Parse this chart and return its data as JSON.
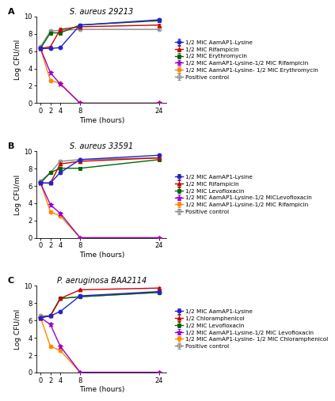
{
  "panels": [
    {
      "label": "A",
      "title": "S. aureus 29213",
      "time": [
        0,
        2,
        4,
        8,
        24
      ],
      "series": [
        {
          "label": "1/2 MIC AamAP1-Lysine",
          "color": "#2222cc",
          "marker": "o",
          "filled": true,
          "values": [
            6.3,
            6.3,
            6.4,
            9.0,
            9.6
          ],
          "yerr": [
            0.1,
            0.1,
            0.1,
            0.15,
            0.15
          ]
        },
        {
          "label": "1/2 MIC Rifampicin",
          "color": "#cc0000",
          "marker": "^",
          "filled": true,
          "values": [
            6.3,
            6.5,
            8.5,
            8.8,
            9.0
          ],
          "yerr": [
            0.1,
            0.1,
            0.15,
            0.15,
            0.15
          ]
        },
        {
          "label": "1/2 MIC Erythromycin",
          "color": "#006600",
          "marker": "s",
          "filled": true,
          "values": [
            6.3,
            8.1,
            8.1,
            9.0,
            9.5
          ],
          "yerr": [
            0.1,
            0.15,
            0.15,
            0.15,
            0.15
          ]
        },
        {
          "label": "1/2 MIC AamAP1-Lysine-1/2 MIC Rifampicin",
          "color": "#9900cc",
          "marker": "*",
          "filled": true,
          "values": [
            6.3,
            3.5,
            2.2,
            0.0,
            0.0
          ],
          "yerr": [
            0.1,
            0.2,
            0.2,
            0.0,
            0.0
          ]
        },
        {
          "label": "1/2 MIC AamAP1-Lysine- 1/2 MIC Erythromycin",
          "color": "#ff8800",
          "marker": "o",
          "filled": true,
          "values": [
            6.3,
            2.6,
            2.3,
            0.0,
            0.0
          ],
          "yerr": [
            0.1,
            0.15,
            0.15,
            0.0,
            0.0
          ]
        },
        {
          "label": "Positive control",
          "color": "#888888",
          "marker": "o",
          "filled": false,
          "values": [
            6.5,
            8.3,
            8.4,
            8.5,
            8.5
          ],
          "yerr": [
            0.1,
            0.1,
            0.1,
            0.1,
            0.1
          ]
        }
      ],
      "ylim": [
        0,
        10
      ],
      "yticks": [
        0,
        2,
        4,
        6,
        8,
        10
      ],
      "xlabel": "Time (hours)",
      "ylabel": "Log CFU/ml"
    },
    {
      "label": "B",
      "title": "S. aureus 33591",
      "time": [
        0,
        2,
        4,
        8,
        24
      ],
      "series": [
        {
          "label": "1/2 MIC AamAP1-Lysine",
          "color": "#2222cc",
          "marker": "o",
          "filled": true,
          "values": [
            6.3,
            6.3,
            7.5,
            9.0,
            9.5
          ],
          "yerr": [
            0.1,
            0.1,
            0.15,
            0.15,
            0.15
          ]
        },
        {
          "label": "1/2 MIC Rifampicin",
          "color": "#cc0000",
          "marker": "^",
          "filled": true,
          "values": [
            6.3,
            6.3,
            8.5,
            8.8,
            9.2
          ],
          "yerr": [
            0.1,
            0.1,
            0.15,
            0.15,
            0.15
          ]
        },
        {
          "label": "1/2 MIC Levofloxacin",
          "color": "#006600",
          "marker": "s",
          "filled": true,
          "values": [
            6.3,
            7.5,
            8.0,
            8.0,
            9.0
          ],
          "yerr": [
            0.1,
            0.15,
            0.15,
            0.15,
            0.15
          ]
        },
        {
          "label": "1/2 MIC AamAP1-Lysine-1/2 MICLevofloxacin",
          "color": "#9900cc",
          "marker": "*",
          "filled": true,
          "values": [
            6.3,
            3.8,
            2.8,
            0.0,
            0.0
          ],
          "yerr": [
            0.1,
            0.2,
            0.2,
            0.0,
            0.0
          ]
        },
        {
          "label": "1/2 MIC AamAP1-Lysine-1/2 MIC Rifampicin",
          "color": "#ff8800",
          "marker": "o",
          "filled": true,
          "values": [
            6.3,
            3.0,
            2.5,
            0.0,
            0.0
          ],
          "yerr": [
            0.1,
            0.15,
            0.15,
            0.0,
            0.0
          ]
        },
        {
          "label": "Positive control",
          "color": "#888888",
          "marker": "o",
          "filled": false,
          "values": [
            6.5,
            7.5,
            8.8,
            9.0,
            9.2
          ],
          "yerr": [
            0.1,
            0.1,
            0.1,
            0.1,
            0.15
          ]
        }
      ],
      "ylim": [
        0,
        10
      ],
      "yticks": [
        0,
        2,
        4,
        6,
        8,
        10
      ],
      "xlabel": "Time (hours)",
      "ylabel": "Log CFU/ml"
    },
    {
      "label": "C",
      "title": "P. aeruginosa BAA2114",
      "time": [
        0,
        2,
        4,
        8,
        24
      ],
      "series": [
        {
          "label": "1/2 MIC AamAP1-Lysine",
          "color": "#2222cc",
          "marker": "o",
          "filled": true,
          "values": [
            6.3,
            6.5,
            7.0,
            8.8,
            9.3
          ],
          "yerr": [
            0.1,
            0.1,
            0.15,
            0.15,
            0.15
          ]
        },
        {
          "label": "1/2 Chloramphenicol",
          "color": "#cc0000",
          "marker": "^",
          "filled": true,
          "values": [
            6.3,
            6.5,
            8.5,
            9.5,
            9.7
          ],
          "yerr": [
            0.1,
            0.1,
            0.15,
            0.15,
            0.15
          ]
        },
        {
          "label": "1/2 MIC Levofloxacin",
          "color": "#006600",
          "marker": "s",
          "filled": true,
          "values": [
            6.3,
            6.5,
            8.5,
            8.7,
            9.2
          ],
          "yerr": [
            0.1,
            0.15,
            0.15,
            0.15,
            0.15
          ]
        },
        {
          "label": "1/2 MIC AamAP1-Lysine-1/2 MIC Levofloxacin",
          "color": "#9900cc",
          "marker": "*",
          "filled": true,
          "values": [
            6.3,
            5.5,
            3.0,
            0.0,
            0.0
          ],
          "yerr": [
            0.1,
            0.2,
            0.2,
            0.0,
            0.0
          ]
        },
        {
          "label": "1/2 MIC AamAP1-Lysine- 1/2 MIC Chloramphenicol",
          "color": "#ff8800",
          "marker": "o",
          "filled": true,
          "values": [
            6.3,
            3.0,
            2.5,
            0.0,
            0.0
          ],
          "yerr": [
            0.1,
            0.15,
            0.15,
            0.0,
            0.0
          ]
        },
        {
          "label": "Positive control",
          "color": "#888888",
          "marker": "o",
          "filled": false,
          "values": [
            6.5,
            6.5,
            8.5,
            8.7,
            9.2
          ],
          "yerr": [
            0.1,
            0.1,
            0.1,
            0.1,
            0.1
          ]
        }
      ],
      "ylim": [
        0,
        10
      ],
      "yticks": [
        0,
        2,
        4,
        6,
        8,
        10
      ],
      "xlabel": "Time (hours)",
      "ylabel": "Log CFU/ml"
    }
  ],
  "bg_color": "#ffffff",
  "title_font_size": 7,
  "label_font_size": 6.5,
  "tick_font_size": 6,
  "legend_font_size": 5.2,
  "line_width": 1.0,
  "marker_size": 3.5,
  "cap_size": 1.5,
  "panel_label_size": 8
}
